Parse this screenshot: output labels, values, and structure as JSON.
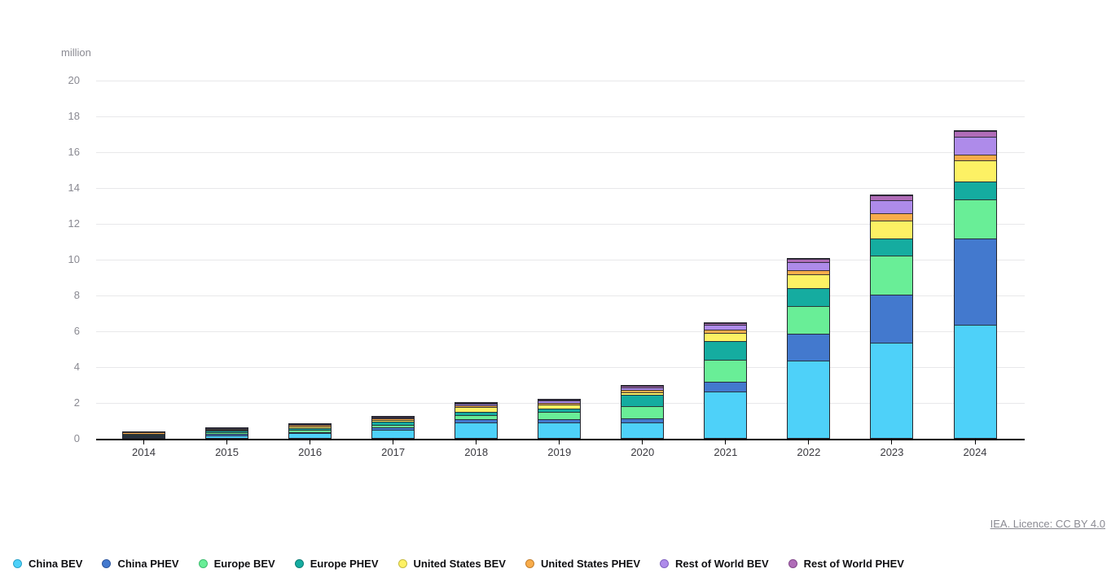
{
  "unit_label": "million",
  "attribution": {
    "text": "IEA. Licence: CC BY 4.0"
  },
  "chart_data": {
    "type": "bar",
    "stacked": true,
    "title": "",
    "ylabel": "million",
    "xlabel": "",
    "ylim": [
      0,
      20
    ],
    "ytick_step": 2,
    "grid": "horizontal",
    "legend_position": "bottom-left",
    "categories": [
      "2014",
      "2015",
      "2016",
      "2017",
      "2018",
      "2019",
      "2020",
      "2021",
      "2022",
      "2023",
      "2024"
    ],
    "series": [
      {
        "name": "China BEV",
        "color": "#4ED1F9",
        "dot_border": "#2BA3C9",
        "values": [
          0.05,
          0.15,
          0.26,
          0.47,
          0.85,
          0.88,
          0.85,
          2.6,
          4.3,
          5.32,
          6.31
        ]
      },
      {
        "name": "China PHEV",
        "color": "#4379CE",
        "dot_border": "#2E569E",
        "values": [
          0.03,
          0.06,
          0.08,
          0.11,
          0.21,
          0.18,
          0.22,
          0.55,
          1.51,
          2.7,
          4.84
        ]
      },
      {
        "name": "Europe BEV",
        "color": "#69EE97",
        "dot_border": "#3EBC6F",
        "values": [
          0.06,
          0.1,
          0.12,
          0.15,
          0.22,
          0.39,
          0.72,
          1.2,
          1.57,
          2.17,
          2.16
        ]
      },
      {
        "name": "Europe PHEV",
        "color": "#15ACA0",
        "dot_border": "#0D7E76",
        "values": [
          0.04,
          0.09,
          0.09,
          0.16,
          0.19,
          0.18,
          0.6,
          1.05,
          1.0,
          0.97,
          1.02
        ]
      },
      {
        "name": "United States BEV",
        "color": "#FDF164",
        "dot_border": "#C6BB41",
        "values": [
          0.06,
          0.07,
          0.09,
          0.1,
          0.24,
          0.24,
          0.18,
          0.45,
          0.75,
          1.0,
          1.15
        ]
      },
      {
        "name": "United States PHEV",
        "color": "#F8AC4B",
        "dot_border": "#C37E2C",
        "values": [
          0.06,
          0.04,
          0.07,
          0.09,
          0.12,
          0.09,
          0.12,
          0.18,
          0.22,
          0.38,
          0.35
        ]
      },
      {
        "name": "Rest of World BEV",
        "color": "#AE8BEA",
        "dot_border": "#8161C0",
        "values": [
          0.02,
          0.03,
          0.05,
          0.08,
          0.1,
          0.12,
          0.13,
          0.27,
          0.48,
          0.75,
          0.97
        ]
      },
      {
        "name": "Rest of World PHEV",
        "color": "#B06CB8",
        "dot_border": "#82478A",
        "values": [
          0.01,
          0.01,
          0.02,
          0.03,
          0.04,
          0.05,
          0.09,
          0.12,
          0.15,
          0.24,
          0.35
        ]
      }
    ]
  }
}
